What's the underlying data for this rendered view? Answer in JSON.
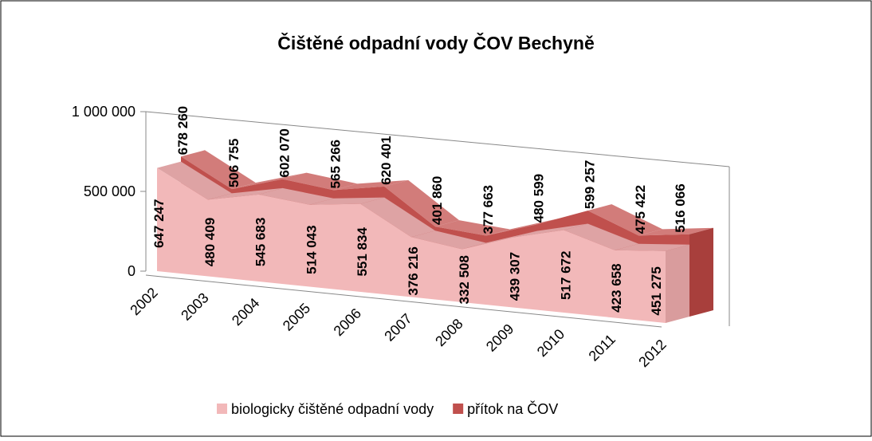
{
  "chart_data": {
    "type": "area3d",
    "title": "Čištěné odpadní vody ČOV Bechyně",
    "categories": [
      "2002",
      "2003",
      "2004",
      "2005",
      "2006",
      "2007",
      "2008",
      "2009",
      "2010",
      "2011",
      "2012"
    ],
    "series": [
      {
        "name": "biologicky čištěné odpadní vody",
        "color": "#f2b8b9",
        "values": [
          647247,
          480409,
          545683,
          514043,
          551834,
          376216,
          332508,
          439307,
          517672,
          423658,
          451275
        ],
        "value_labels": [
          "647 247",
          "480 409",
          "545 683",
          "514 043",
          "551 834",
          "376 216",
          "332 508",
          "439 307",
          "517 672",
          "423 658",
          "451 275"
        ]
      },
      {
        "name": "přítok na ČOV",
        "color": "#c0504d",
        "values": [
          678260,
          506755,
          602070,
          565266,
          620401,
          401860,
          377663,
          480599,
          599257,
          475422,
          516066
        ],
        "value_labels": [
          "678 260",
          "506 755",
          "602 070",
          "565 266",
          "620 401",
          "401 860",
          "377 663",
          "480 599",
          "599 257",
          "475 422",
          "516 066"
        ]
      }
    ],
    "ylim": [
      0,
      1000000
    ],
    "yticks": [
      0,
      {
        "value": 500000,
        "label": "500 000"
      },
      {
        "value": 1000000,
        "label": "1 000 000"
      }
    ]
  }
}
